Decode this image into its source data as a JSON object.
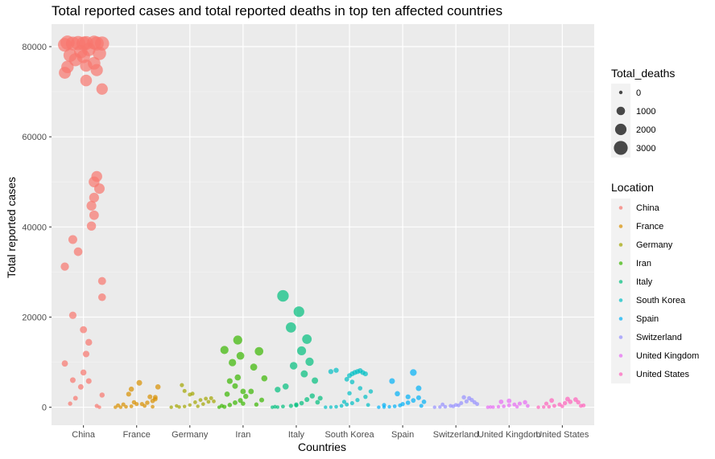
{
  "chart_data": {
    "type": "scatter",
    "title": "Total reported cases and total reported deaths in top ten affected countries",
    "xlabel": "Countries",
    "ylabel": "Total reported cases",
    "ylim": [
      -4000,
      85000
    ],
    "yticks": [
      0,
      20000,
      40000,
      60000,
      80000
    ],
    "ytick_labels": [
      "0",
      "20000",
      "40000",
      "60000",
      "80000"
    ],
    "categories": [
      "China",
      "France",
      "Germany",
      "Iran",
      "Italy",
      "South Korea",
      "Spain",
      "Switzerland",
      "United Kingdom",
      "United States"
    ],
    "size_legend": {
      "title": "Total_deaths",
      "values": [
        0,
        1000,
        2000,
        3000
      ],
      "labels": [
        "0",
        "1000",
        "2000",
        "3000"
      ]
    },
    "color_legend": {
      "title": "Location",
      "entries": [
        {
          "name": "China",
          "color": "#F8766D"
        },
        {
          "name": "France",
          "color": "#D89000"
        },
        {
          "name": "Germany",
          "color": "#A3A500"
        },
        {
          "name": "Iran",
          "color": "#39B600"
        },
        {
          "name": "Italy",
          "color": "#00BF7D"
        },
        {
          "name": "South Korea",
          "color": "#00BFC4"
        },
        {
          "name": "Spain",
          "color": "#00B0F6"
        },
        {
          "name": "Switzerland",
          "color": "#9590FF"
        },
        {
          "name": "United Kingdom",
          "color": "#E76BF3"
        },
        {
          "name": "United States",
          "color": "#FF62BC"
        }
      ]
    },
    "grid": true,
    "legend_position": "right",
    "series": [
      {
        "name": "China",
        "points": [
          [
            0.3,
            0,
            0
          ],
          [
            -0.25,
            800,
            17
          ],
          [
            -0.15,
            2000,
            40
          ],
          [
            0.25,
            300,
            10
          ],
          [
            0.35,
            2700,
            80
          ],
          [
            -0.05,
            4500,
            110
          ],
          [
            -0.2,
            6000,
            130
          ],
          [
            0.1,
            5800,
            130
          ],
          [
            0.0,
            7700,
            170
          ],
          [
            -0.35,
            9700,
            210
          ],
          [
            0.05,
            11800,
            260
          ],
          [
            0.1,
            14400,
            300
          ],
          [
            0.0,
            17200,
            360
          ],
          [
            -0.2,
            20400,
            420
          ],
          [
            -0.35,
            31200,
            640
          ],
          [
            -0.1,
            34500,
            720
          ],
          [
            -0.2,
            37200,
            800
          ],
          [
            0.15,
            40200,
            900
          ],
          [
            0.2,
            42600,
            1000
          ],
          [
            0.15,
            44700,
            1110
          ],
          [
            0.2,
            46500,
            1110
          ],
          [
            0.3,
            48500,
            1350
          ],
          [
            0.2,
            50000,
            1500
          ],
          [
            0.25,
            51200,
            1520
          ],
          [
            0.35,
            24400,
            490
          ],
          [
            0.35,
            28000,
            560
          ],
          [
            -0.35,
            74200,
            2000
          ],
          [
            0.05,
            72500,
            1870
          ],
          [
            0.35,
            70600,
            1770
          ],
          [
            0.25,
            74800,
            2120
          ],
          [
            -0.3,
            75500,
            2240
          ],
          [
            0.05,
            75800,
            2120
          ],
          [
            0.2,
            76300,
            2350
          ],
          [
            -0.15,
            77100,
            2590
          ],
          [
            0.0,
            77800,
            2660
          ],
          [
            -0.25,
            78100,
            2710
          ],
          [
            0.3,
            78500,
            2740
          ],
          [
            -0.05,
            78900,
            2790
          ],
          [
            0.1,
            79400,
            2830
          ],
          [
            -0.35,
            80400,
            2950
          ],
          [
            -0.2,
            80700,
            3000
          ],
          [
            0.05,
            80800,
            3050
          ],
          [
            0.2,
            80900,
            3100
          ],
          [
            0.35,
            80700,
            3150
          ],
          [
            -0.3,
            80900,
            3200
          ],
          [
            -0.1,
            80800,
            3200
          ],
          [
            0.25,
            80700,
            3100
          ],
          [
            0.0,
            80700,
            3050
          ]
        ]
      },
      {
        "name": "France",
        "points": [
          [
            -0.4,
            0,
            0
          ],
          [
            -0.3,
            10,
            0
          ],
          [
            -0.2,
            100,
            1
          ],
          [
            -0.1,
            200,
            2
          ],
          [
            0.0,
            700,
            9
          ],
          [
            -0.05,
            1100,
            19
          ],
          [
            0.3,
            1400,
            30
          ],
          [
            0.25,
            2300,
            48
          ],
          [
            0.35,
            2200,
            40
          ],
          [
            0.1,
            700,
            12
          ],
          [
            0.35,
            1800,
            33
          ],
          [
            0.4,
            4500,
            91
          ],
          [
            0.05,
            5400,
            127
          ],
          [
            -0.1,
            4000,
            79
          ],
          [
            -0.15,
            2900,
            61
          ],
          [
            0.2,
            1000,
            20
          ],
          [
            0.15,
            300,
            3
          ],
          [
            -0.25,
            600,
            9
          ],
          [
            0.3,
            100,
            2
          ],
          [
            -0.35,
            400,
            7
          ]
        ]
      },
      {
        "name": "Germany",
        "points": [
          [
            -0.35,
            0,
            0
          ],
          [
            -0.2,
            50,
            0
          ],
          [
            -0.1,
            150,
            0
          ],
          [
            0.0,
            500,
            0
          ],
          [
            0.1,
            1100,
            2
          ],
          [
            0.2,
            1600,
            3
          ],
          [
            0.3,
            1900,
            4
          ],
          [
            0.35,
            1200,
            3
          ],
          [
            0.25,
            700,
            1
          ],
          [
            -0.1,
            3600,
            8
          ],
          [
            -0.15,
            4900,
            11
          ],
          [
            0.0,
            2800,
            6
          ],
          [
            0.4,
            2000,
            5
          ],
          [
            0.45,
            1300,
            2
          ],
          [
            -0.25,
            300,
            0
          ],
          [
            0.15,
            200,
            0
          ],
          [
            0.05,
            3000,
            6
          ]
        ]
      },
      {
        "name": "Iran",
        "points": [
          [
            -0.45,
            0,
            0
          ],
          [
            -0.35,
            100,
            10
          ],
          [
            -0.25,
            500,
            22
          ],
          [
            -0.15,
            1000,
            40
          ],
          [
            -0.05,
            1500,
            54
          ],
          [
            0.05,
            2400,
            77
          ],
          [
            0.15,
            3500,
            107
          ],
          [
            -0.35,
            12700,
            611
          ],
          [
            -0.1,
            14900,
            853
          ],
          [
            -0.05,
            11400,
            514
          ],
          [
            -0.2,
            9900,
            429
          ],
          [
            0.2,
            8900,
            354
          ],
          [
            -0.1,
            6600,
            194
          ],
          [
            -0.25,
            5800,
            145
          ],
          [
            -0.15,
            4700,
            124
          ],
          [
            0.0,
            3500,
            108
          ],
          [
            -0.3,
            2900,
            92
          ],
          [
            0.3,
            12400,
            710
          ],
          [
            0.35,
            1600,
            50
          ],
          [
            0.4,
            6400,
            190
          ],
          [
            0.25,
            600,
            15
          ],
          [
            -0.4,
            300,
            5
          ],
          [
            0.0,
            800,
            24
          ]
        ]
      },
      {
        "name": "Italy",
        "points": [
          [
            -0.45,
            0,
            0
          ],
          [
            -0.35,
            20,
            0
          ],
          [
            -0.25,
            150,
            3
          ],
          [
            -0.1,
            300,
            11
          ],
          [
            0.0,
            600,
            17
          ],
          [
            0.1,
            900,
            29
          ],
          [
            0.2,
            1700,
            52
          ],
          [
            -0.35,
            3900,
            148
          ],
          [
            -0.2,
            4600,
            197
          ],
          [
            -0.25,
            24700,
            1809
          ],
          [
            0.05,
            21200,
            1441
          ],
          [
            -0.1,
            17700,
            1266
          ],
          [
            0.2,
            15100,
            1016
          ],
          [
            0.1,
            12500,
            827
          ],
          [
            0.25,
            10100,
            631
          ],
          [
            -0.05,
            9200,
            463
          ],
          [
            0.15,
            7400,
            366
          ],
          [
            0.35,
            5900,
            233
          ],
          [
            0.3,
            2500,
            79
          ],
          [
            0.4,
            1100,
            35
          ],
          [
            0.45,
            2000,
            50
          ],
          [
            -0.4,
            100,
            2
          ],
          [
            0.0,
            400,
            10
          ]
        ]
      },
      {
        "name": "South Korea",
        "points": [
          [
            -0.45,
            0,
            0
          ],
          [
            -0.35,
            30,
            0
          ],
          [
            -0.25,
            100,
            1
          ],
          [
            -0.15,
            300,
            2
          ],
          [
            -0.05,
            600,
            6
          ],
          [
            0.05,
            900,
            9
          ],
          [
            0.15,
            1600,
            13
          ],
          [
            -0.35,
            7900,
            66
          ],
          [
            -0.25,
            8200,
            67
          ],
          [
            0.0,
            7000,
            50
          ],
          [
            0.05,
            7400,
            53
          ],
          [
            0.1,
            7700,
            60
          ],
          [
            0.15,
            7900,
            61
          ],
          [
            0.2,
            8100,
            70
          ],
          [
            0.25,
            7700,
            54
          ],
          [
            0.3,
            7400,
            56
          ],
          [
            -0.05,
            6200,
            42
          ],
          [
            0.05,
            5600,
            35
          ],
          [
            0.2,
            4200,
            28
          ],
          [
            0.4,
            3500,
            22
          ],
          [
            0.3,
            2300,
            16
          ],
          [
            0.0,
            3100,
            20
          ],
          [
            -0.1,
            1200,
            11
          ],
          [
            0.35,
            500,
            4
          ]
        ]
      },
      {
        "name": "Spain",
        "points": [
          [
            -0.45,
            0,
            0
          ],
          [
            -0.35,
            30,
            0
          ],
          [
            -0.25,
            100,
            0
          ],
          [
            -0.15,
            200,
            2
          ],
          [
            -0.05,
            400,
            5
          ],
          [
            0.0,
            700,
            17
          ],
          [
            0.1,
            1000,
            28
          ],
          [
            0.2,
            1500,
            36
          ],
          [
            0.3,
            2100,
            49
          ],
          [
            -0.2,
            5800,
            136
          ],
          [
            0.2,
            7700,
            288
          ],
          [
            0.3,
            4200,
            120
          ],
          [
            -0.1,
            3000,
            84
          ],
          [
            0.1,
            2300,
            55
          ],
          [
            0.4,
            1200,
            30
          ],
          [
            0.35,
            300,
            8
          ],
          [
            -0.35,
            500,
            10
          ]
        ]
      },
      {
        "name": "Switzerland",
        "points": [
          [
            -0.4,
            0,
            0
          ],
          [
            -0.3,
            50,
            0
          ],
          [
            -0.2,
            100,
            1
          ],
          [
            -0.1,
            300,
            2
          ],
          [
            0.0,
            500,
            3
          ],
          [
            0.1,
            900,
            6
          ],
          [
            0.2,
            1300,
            11
          ],
          [
            0.25,
            2000,
            14
          ],
          [
            0.3,
            1600,
            13
          ],
          [
            0.35,
            1100,
            9
          ],
          [
            0.15,
            2200,
            20
          ],
          [
            0.05,
            400,
            2
          ],
          [
            -0.25,
            600,
            4
          ],
          [
            0.4,
            700,
            5
          ],
          [
            -0.05,
            200,
            1
          ]
        ]
      },
      {
        "name": "United Kingdom",
        "points": [
          [
            -0.4,
            0,
            0
          ],
          [
            -0.3,
            20,
            0
          ],
          [
            -0.2,
            100,
            0
          ],
          [
            -0.1,
            200,
            1
          ],
          [
            0.0,
            400,
            3
          ],
          [
            0.1,
            600,
            6
          ],
          [
            0.2,
            800,
            10
          ],
          [
            0.3,
            1100,
            21
          ],
          [
            0.35,
            300,
            2
          ],
          [
            -0.15,
            1200,
            35
          ],
          [
            0.0,
            1400,
            40
          ],
          [
            0.15,
            100,
            0
          ],
          [
            -0.35,
            50,
            0
          ]
        ]
      },
      {
        "name": "United States",
        "points": [
          [
            -0.45,
            0,
            0
          ],
          [
            -0.35,
            50,
            0
          ],
          [
            -0.25,
            100,
            1
          ],
          [
            -0.15,
            300,
            4
          ],
          [
            -0.05,
            600,
            11
          ],
          [
            0.05,
            900,
            17
          ],
          [
            0.15,
            1200,
            25
          ],
          [
            0.25,
            1700,
            36
          ],
          [
            0.35,
            300,
            6
          ],
          [
            -0.2,
            1500,
            36
          ],
          [
            0.1,
            1800,
            41
          ],
          [
            -0.3,
            800,
            11
          ],
          [
            0.3,
            1100,
            20
          ],
          [
            0.4,
            400,
            5
          ],
          [
            0.0,
            200,
            1
          ]
        ]
      }
    ]
  }
}
